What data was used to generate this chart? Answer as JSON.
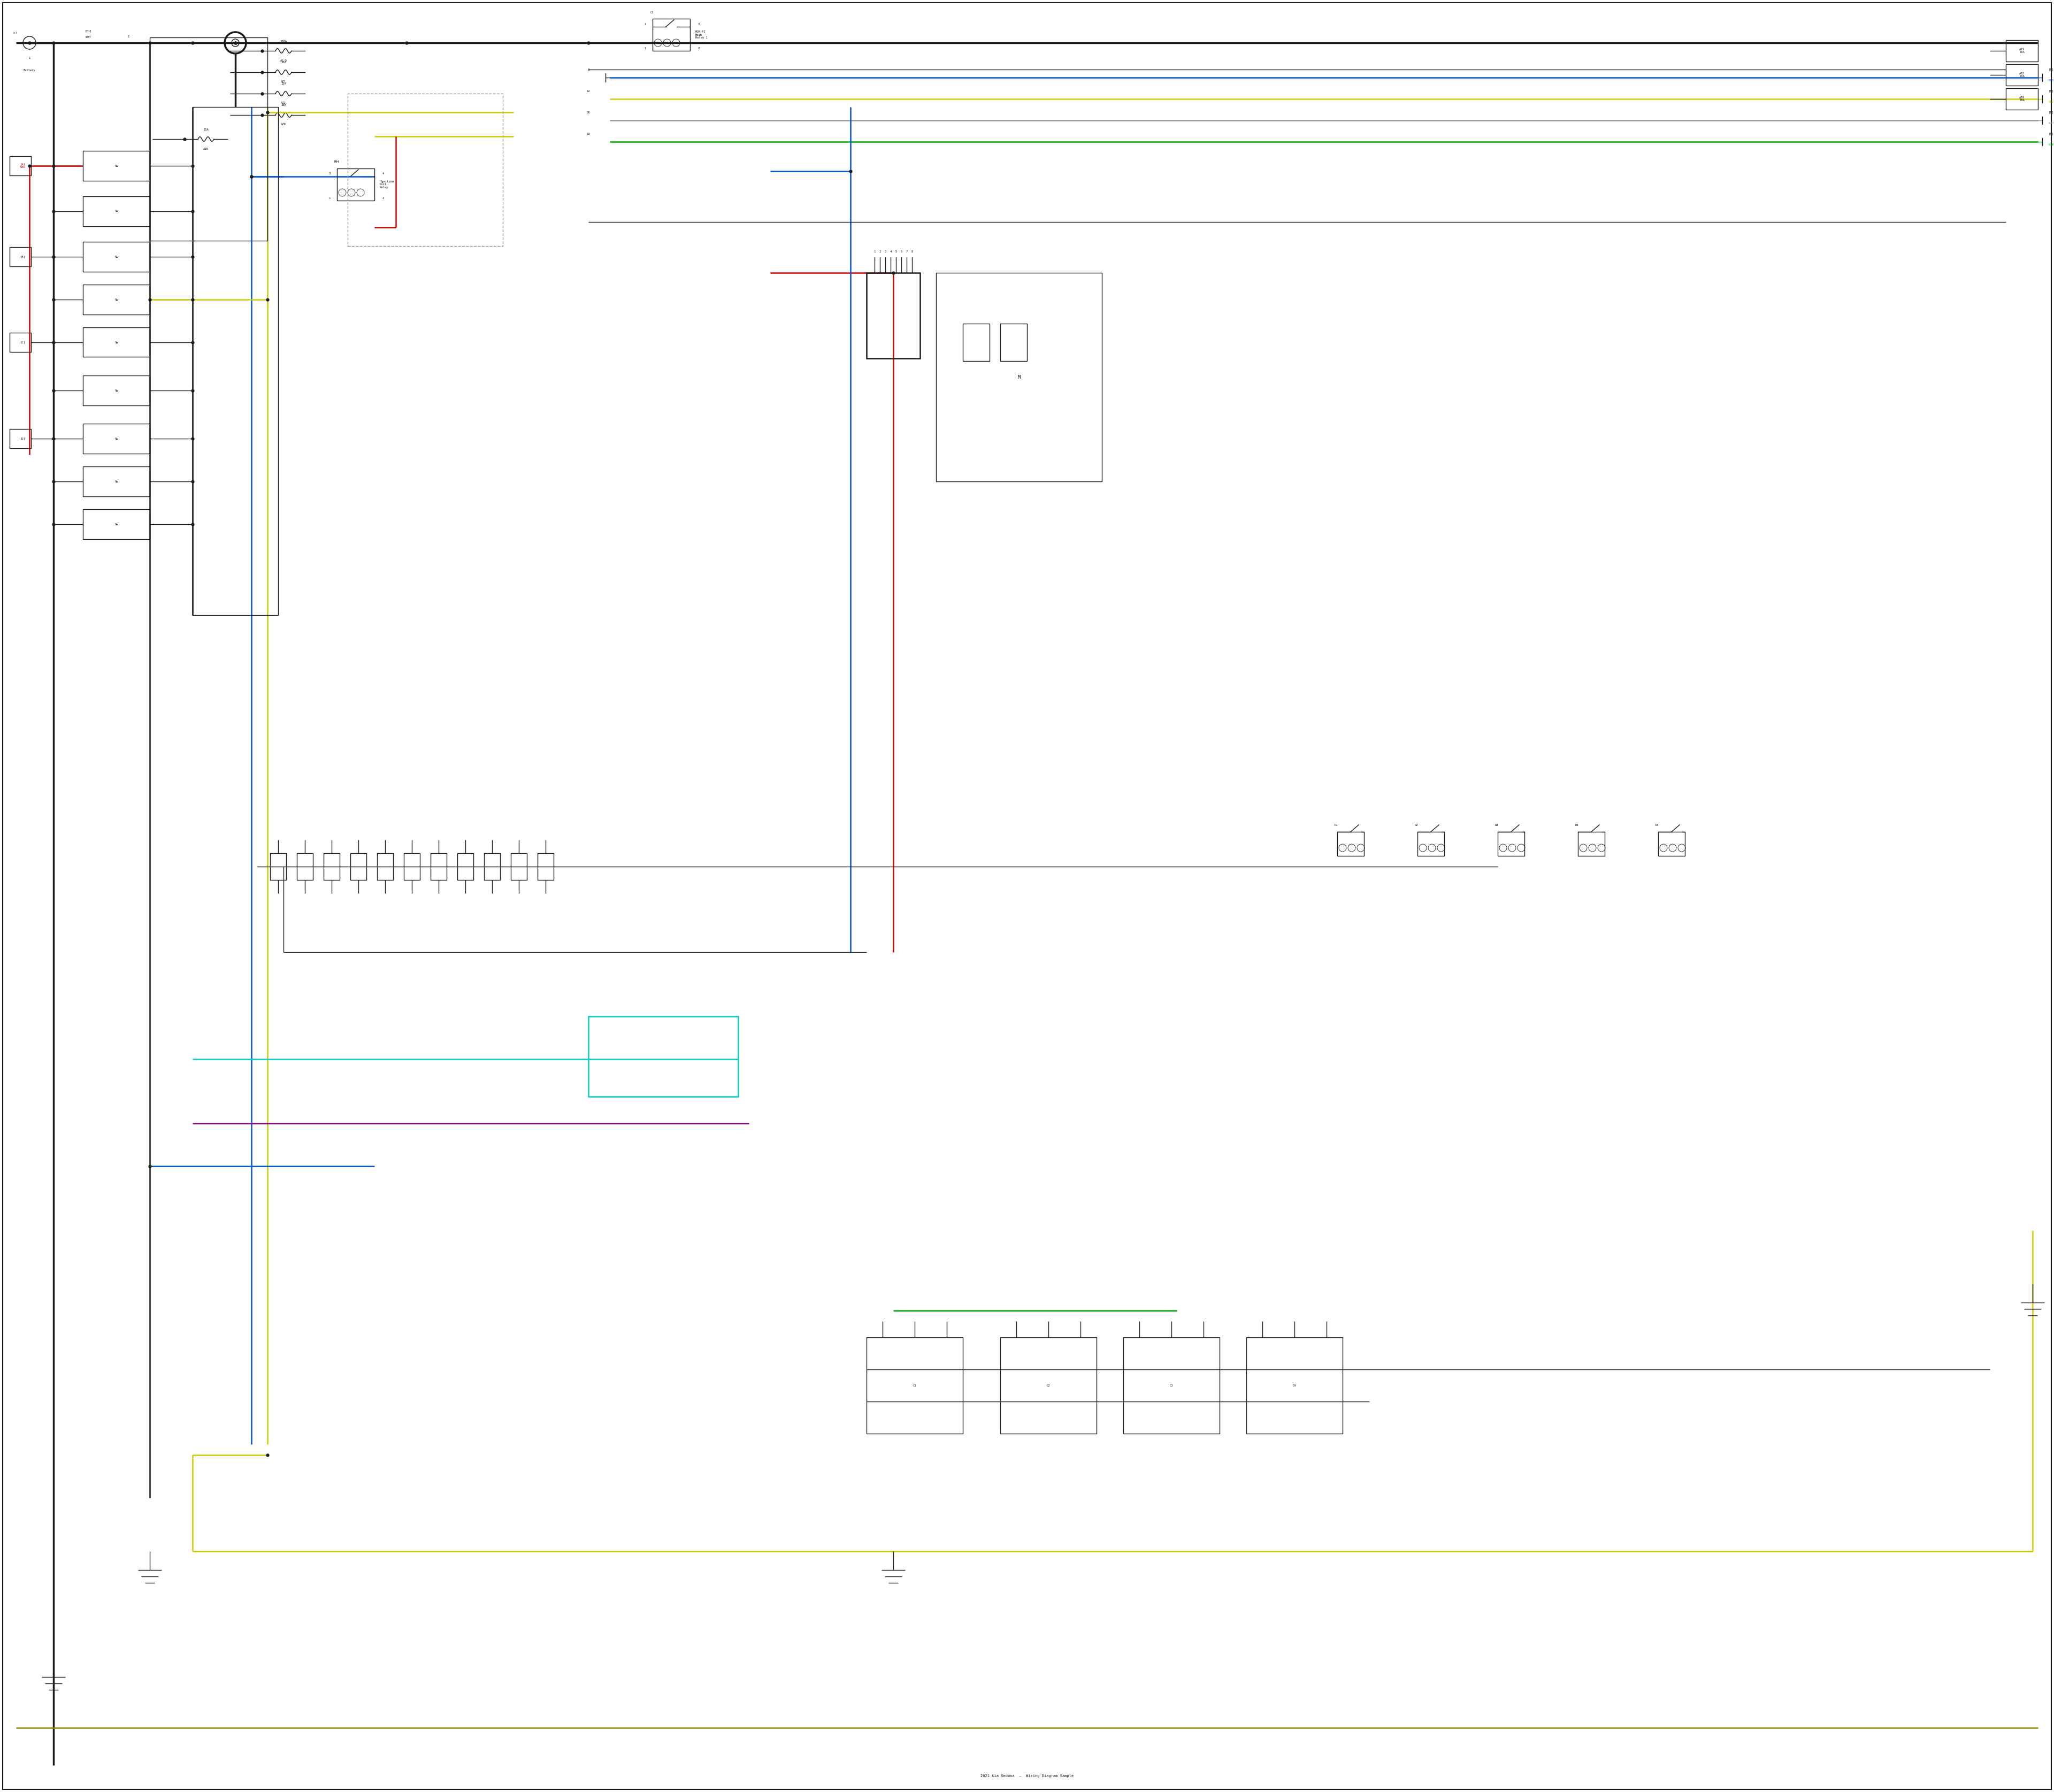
{
  "title": "2021 Kia Sedona Wiring Diagram Sample",
  "bg_color": "#ffffff",
  "fig_width": 38.4,
  "fig_height": 33.5,
  "wire_colors": {
    "black": "#1a1a1a",
    "red": "#cc0000",
    "blue": "#0055cc",
    "yellow": "#cccc00",
    "green": "#00aa00",
    "cyan": "#00cccc",
    "purple": "#880088",
    "gray": "#999999",
    "olive": "#888800",
    "dark_gray": "#444444"
  }
}
